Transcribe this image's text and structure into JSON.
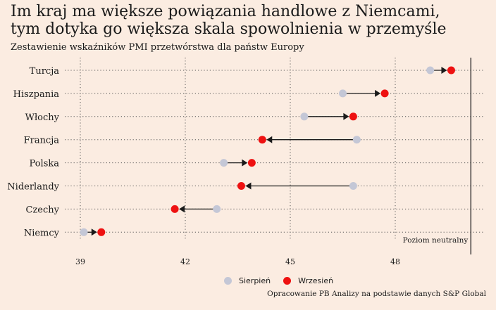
{
  "header": {
    "title_line1": "Im kraj ma większe powiązania handlowe z Niemcami,",
    "title_line2": "tym dotyka go większa skala spowolnienia w przemyśle",
    "subtitle": "Zestawienie wskaźników PMI przetwórstwa dla państw Europy"
  },
  "chart_data": {
    "type": "dumbbell",
    "categories": [
      "Turcja",
      "Hiszpania",
      "Włochy",
      "Francja",
      "Polska",
      "Niderlandy",
      "Czechy",
      "Niemcy"
    ],
    "series": [
      {
        "name": "Sierpień",
        "color": "#c4c7d6",
        "values": [
          49.0,
          46.5,
          45.4,
          46.9,
          43.1,
          46.8,
          42.9,
          39.1
        ]
      },
      {
        "name": "Wrzesień",
        "color": "#ee1111",
        "values": [
          49.6,
          47.7,
          46.8,
          44.2,
          43.9,
          43.6,
          41.7,
          39.6
        ]
      }
    ],
    "xlim": [
      38.6,
      51.0
    ],
    "xticks": [
      39,
      42,
      45,
      48
    ],
    "reference_line": {
      "x": 50,
      "label": "Poziom neutralny"
    },
    "grid": "dotted"
  },
  "legend": {
    "sierpien": "Sierpień",
    "wrzesien": "Wrzesień"
  },
  "source": "Opracowanie PB Analizy na podstawie danych S&P Global"
}
